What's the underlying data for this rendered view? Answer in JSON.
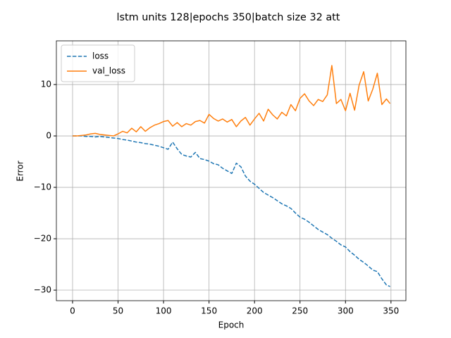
{
  "chart_data": {
    "type": "line",
    "title": "lstm units 128|epochs 350|batch size 32 att",
    "xlabel": "Epoch",
    "ylabel": "Error",
    "x": [
      0,
      5,
      10,
      15,
      20,
      25,
      30,
      35,
      40,
      45,
      50,
      55,
      60,
      65,
      70,
      75,
      80,
      85,
      90,
      95,
      100,
      105,
      110,
      115,
      120,
      125,
      130,
      135,
      140,
      145,
      150,
      155,
      160,
      165,
      170,
      175,
      180,
      185,
      190,
      195,
      200,
      205,
      210,
      215,
      220,
      225,
      230,
      235,
      240,
      245,
      250,
      255,
      260,
      265,
      270,
      275,
      280,
      285,
      290,
      295,
      300,
      305,
      310,
      315,
      320,
      325,
      330,
      335,
      340,
      345,
      349
    ],
    "series": [
      {
        "name": "loss",
        "color": "#1f77b4",
        "linestyle": "dashed",
        "values": [
          0,
          0,
          0,
          -0.1,
          -0.1,
          -0.2,
          -0.1,
          -0.2,
          -0.3,
          -0.4,
          -0.5,
          -0.7,
          -0.8,
          -1.0,
          -1.2,
          -1.3,
          -1.5,
          -1.6,
          -1.8,
          -2.0,
          -2.3,
          -2.6,
          -1.2,
          -2.5,
          -3.6,
          -3.9,
          -4.1,
          -3.2,
          -4.4,
          -4.6,
          -4.9,
          -5.4,
          -5.6,
          -6.3,
          -6.8,
          -7.3,
          -5.3,
          -6.0,
          -7.8,
          -8.8,
          -9.4,
          -10.2,
          -11.0,
          -11.5,
          -12.0,
          -12.6,
          -13.2,
          -13.6,
          -14.1,
          -15.0,
          -15.8,
          -16.2,
          -16.8,
          -17.5,
          -18.2,
          -18.7,
          -19.2,
          -19.9,
          -20.5,
          -21.2,
          -21.6,
          -22.5,
          -23.2,
          -24.0,
          -24.6,
          -25.3,
          -26.1,
          -26.4,
          -27.8,
          -29.0,
          -29.3
        ]
      },
      {
        "name": "val_loss",
        "color": "#ff7f0e",
        "linestyle": "solid",
        "values": [
          0,
          0,
          0.1,
          0.2,
          0.4,
          0.5,
          0.3,
          0.2,
          0.1,
          0,
          0.4,
          0.9,
          0.6,
          1.5,
          0.8,
          1.8,
          0.9,
          1.6,
          2.1,
          2.4,
          2.8,
          3.0,
          1.9,
          2.6,
          1.8,
          2.4,
          2.1,
          2.8,
          3.0,
          2.5,
          4.2,
          3.4,
          2.9,
          3.3,
          2.7,
          3.2,
          1.8,
          2.9,
          3.6,
          2.1,
          3.3,
          4.4,
          2.9,
          5.2,
          4.1,
          3.3,
          4.6,
          3.9,
          6.1,
          4.9,
          7.3,
          8.2,
          6.8,
          5.9,
          7.1,
          6.7,
          8.0,
          13.7,
          6.3,
          7.1,
          4.9,
          8.3,
          5.0,
          9.9,
          12.5,
          6.8,
          9.1,
          12.2,
          6.1,
          7.2,
          6.3
        ]
      }
    ],
    "xlim": [
      -17.8,
      366.4
    ],
    "ylim": [
      -32.05,
      18.5
    ],
    "xticks": [
      0,
      50,
      100,
      150,
      200,
      250,
      300,
      350
    ],
    "yticks": [
      {
        "value": -30,
        "label": "−30"
      },
      {
        "value": -20,
        "label": "−20"
      },
      {
        "value": -10,
        "label": "−10"
      },
      0,
      10
    ],
    "grid": true,
    "legend": "upper left"
  }
}
